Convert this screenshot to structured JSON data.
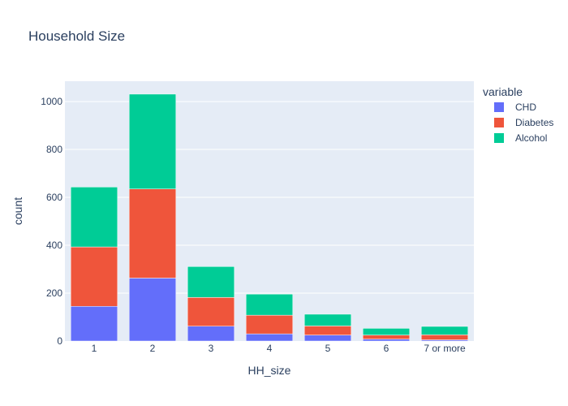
{
  "chart_data": {
    "type": "bar",
    "stacked": true,
    "title": "Household Size",
    "xlabel": "HH_size",
    "ylabel": "count",
    "categories": [
      "1",
      "2",
      "3",
      "4",
      "5",
      "6",
      "7 or more"
    ],
    "ylim": [
      0,
      1085
    ],
    "yticks": [
      0,
      200,
      400,
      600,
      800,
      1000
    ],
    "grid": true,
    "legend": {
      "title": "variable",
      "placement": "right"
    },
    "series": [
      {
        "name": "CHD",
        "color": "#636efa",
        "values": [
          145,
          263,
          62,
          30,
          25,
          8,
          5
        ]
      },
      {
        "name": "Diabetes",
        "color": "#ef553b",
        "values": [
          248,
          372,
          120,
          78,
          38,
          17,
          21
        ]
      },
      {
        "name": "Alcohol",
        "color": "#00cc96",
        "values": [
          250,
          396,
          129,
          88,
          49,
          28,
          35
        ]
      }
    ]
  }
}
